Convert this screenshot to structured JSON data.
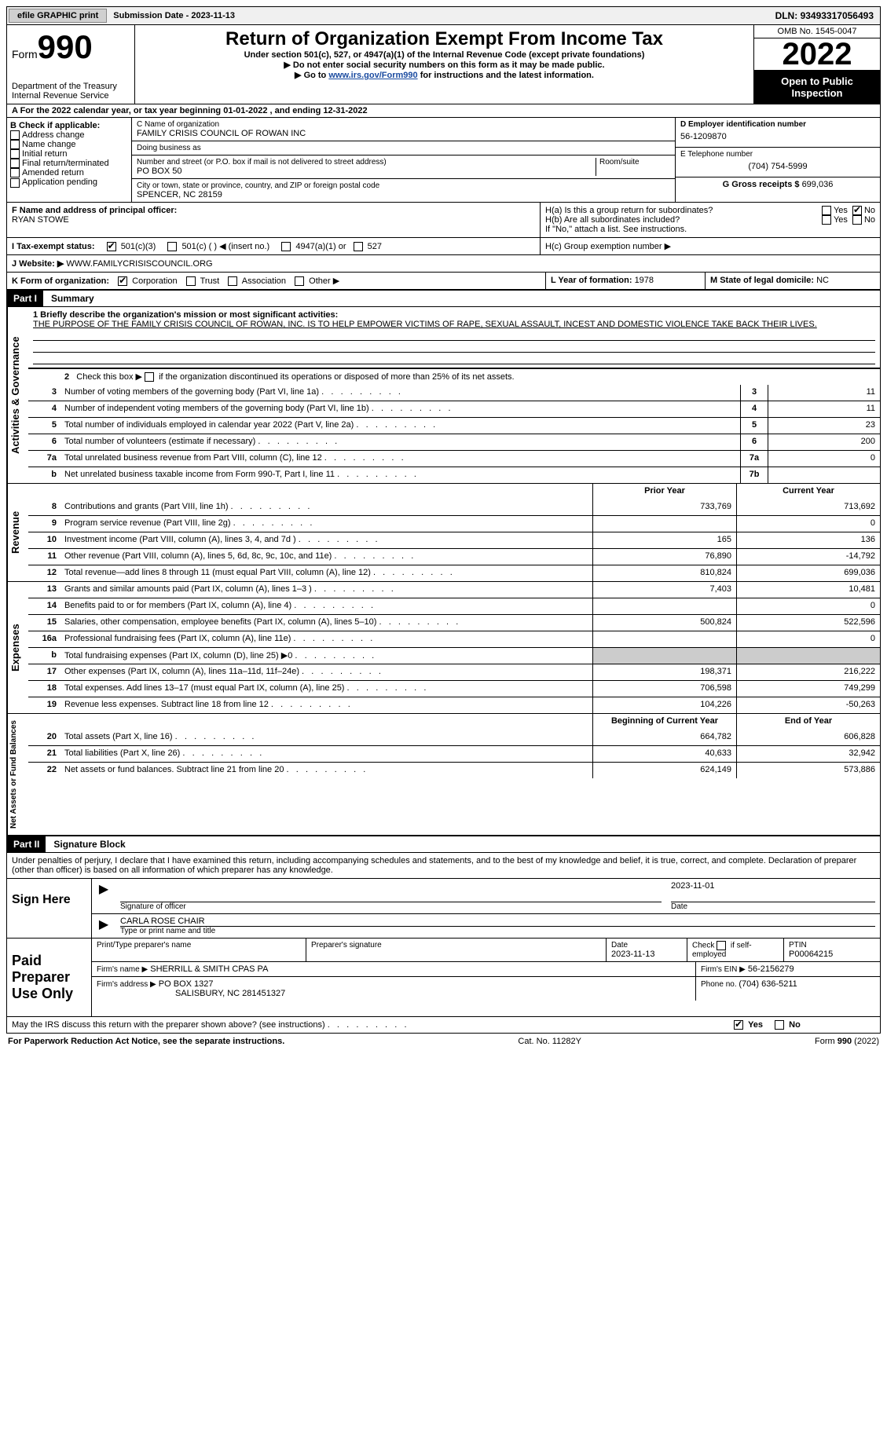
{
  "topbar": {
    "efile": "efile GRAPHIC print",
    "sub_label": "Submission Date - ",
    "sub_date": "2023-11-13",
    "dln_label": "DLN: ",
    "dln": "93493317056493"
  },
  "header": {
    "form_word": "Form",
    "form_num": "990",
    "dept": "Department of the Treasury",
    "irs": "Internal Revenue Service",
    "title": "Return of Organization Exempt From Income Tax",
    "sub1": "Under section 501(c), 527, or 4947(a)(1) of the Internal Revenue Code (except private foundations)",
    "sub2": "▶ Do not enter social security numbers on this form as it may be made public.",
    "sub3a": "▶ Go to ",
    "sub3_link": "www.irs.gov/Form990",
    "sub3b": " for instructions and the latest information.",
    "omb": "OMB No. 1545-0047",
    "year": "2022",
    "open": "Open to Public Inspection"
  },
  "rowA": {
    "text_a": "A For the 2022 calendar year, or tax year beginning ",
    "begin": "01-01-2022",
    "text_b": "   , and ending ",
    "end": "12-31-2022"
  },
  "colB": {
    "label": "B Check if applicable:",
    "opts": [
      "Address change",
      "Name change",
      "Initial return",
      "Final return/terminated",
      "Amended return",
      "Application pending"
    ]
  },
  "colC": {
    "name_label": "C Name of organization",
    "name": "FAMILY CRISIS COUNCIL OF ROWAN INC",
    "dba_label": "Doing business as",
    "dba": "",
    "addr_label": "Number and street (or P.O. box if mail is not delivered to street address)",
    "room_label": "Room/suite",
    "addr": "PO BOX 50",
    "city_label": "City or town, state or province, country, and ZIP or foreign postal code",
    "city": "SPENCER, NC  28159"
  },
  "colDE": {
    "d_label": "D Employer identification number",
    "ein": "56-1209870",
    "e_label": "E Telephone number",
    "phone": "(704) 754-5999",
    "g_label": "G Gross receipts $ ",
    "gross": "699,036"
  },
  "rowF": {
    "f_label": "F Name and address of principal officer:",
    "officer": "RYAN STOWE",
    "ha_label": "H(a)  Is this a group return for subordinates?",
    "hb_label": "H(b)  Are all subordinates included?",
    "h_note": "If \"No,\" attach a list. See instructions.",
    "hc_label": "H(c)  Group exemption number ▶",
    "yes": "Yes",
    "no": "No"
  },
  "rowI": {
    "label": "I    Tax-exempt status:",
    "o1": "501(c)(3)",
    "o2": "501(c) (  ) ◀ (insert no.)",
    "o3": "4947(a)(1) or",
    "o4": "527"
  },
  "rowJ": {
    "label": "J   Website: ▶",
    "url": "WWW.FAMILYCRISISCOUNCIL.ORG"
  },
  "rowK": {
    "label": "K Form of organization:",
    "o1": "Corporation",
    "o2": "Trust",
    "o3": "Association",
    "o4": "Other ▶",
    "l_label": "L Year of formation: ",
    "l_val": "1978",
    "m_label": "M State of legal domicile: ",
    "m_val": "NC"
  },
  "part1": {
    "tag": "Part I",
    "title": "Summary"
  },
  "summary": {
    "q1_label": "1   Briefly describe the organization's mission or most significant activities:",
    "q1_text": "THE PURPOSE OF THE FAMILY CRISIS COUNCIL OF ROWAN, INC. IS TO HELP EMPOWER VICTIMS OF RAPE, SEXUAL ASSAULT, INCEST AND DOMESTIC VIOLENCE TAKE BACK THEIR LIVES.",
    "q2": "2   Check this box ▶        if the organization discontinued its operations or disposed of more than 25% of its net assets.",
    "rows_a": [
      {
        "n": "3",
        "label": "Number of voting members of the governing body (Part VI, line 1a)",
        "box": "3",
        "val": "11"
      },
      {
        "n": "4",
        "label": "Number of independent voting members of the governing body (Part VI, line 1b)",
        "box": "4",
        "val": "11"
      },
      {
        "n": "5",
        "label": "Total number of individuals employed in calendar year 2022 (Part V, line 2a)",
        "box": "5",
        "val": "23"
      },
      {
        "n": "6",
        "label": "Total number of volunteers (estimate if necessary)",
        "box": "6",
        "val": "200"
      },
      {
        "n": "7a",
        "label": "Total unrelated business revenue from Part VIII, column (C), line 12",
        "box": "7a",
        "val": "0"
      },
      {
        "n": "b",
        "label": "Net unrelated business taxable income from Form 990-T, Part I, line 11",
        "box": "7b",
        "val": ""
      }
    ],
    "hdr_prior": "Prior Year",
    "hdr_current": "Current Year",
    "rows_rev": [
      {
        "n": "8",
        "label": "Contributions and grants (Part VIII, line 1h)",
        "p": "733,769",
        "c": "713,692"
      },
      {
        "n": "9",
        "label": "Program service revenue (Part VIII, line 2g)",
        "p": "",
        "c": "0"
      },
      {
        "n": "10",
        "label": "Investment income (Part VIII, column (A), lines 3, 4, and 7d )",
        "p": "165",
        "c": "136"
      },
      {
        "n": "11",
        "label": "Other revenue (Part VIII, column (A), lines 5, 6d, 8c, 9c, 10c, and 11e)",
        "p": "76,890",
        "c": "-14,792"
      },
      {
        "n": "12",
        "label": "Total revenue—add lines 8 through 11 (must equal Part VIII, column (A), line 12)",
        "p": "810,824",
        "c": "699,036"
      }
    ],
    "rows_exp": [
      {
        "n": "13",
        "label": "Grants and similar amounts paid (Part IX, column (A), lines 1–3 )",
        "p": "7,403",
        "c": "10,481"
      },
      {
        "n": "14",
        "label": "Benefits paid to or for members (Part IX, column (A), line 4)",
        "p": "",
        "c": "0"
      },
      {
        "n": "15",
        "label": "Salaries, other compensation, employee benefits (Part IX, column (A), lines 5–10)",
        "p": "500,824",
        "c": "522,596"
      },
      {
        "n": "16a",
        "label": "Professional fundraising fees (Part IX, column (A), line 11e)",
        "p": "",
        "c": "0"
      },
      {
        "n": "b",
        "label": "Total fundraising expenses (Part IX, column (D), line 25) ▶0",
        "p": "GREY",
        "c": "GREY"
      },
      {
        "n": "17",
        "label": "Other expenses (Part IX, column (A), lines 11a–11d, 11f–24e)",
        "p": "198,371",
        "c": "216,222"
      },
      {
        "n": "18",
        "label": "Total expenses. Add lines 13–17 (must equal Part IX, column (A), line 25)",
        "p": "706,598",
        "c": "749,299"
      },
      {
        "n": "19",
        "label": "Revenue less expenses. Subtract line 18 from line 12",
        "p": "104,226",
        "c": "-50,263"
      }
    ],
    "hdr_begin": "Beginning of Current Year",
    "hdr_end": "End of Year",
    "rows_net": [
      {
        "n": "20",
        "label": "Total assets (Part X, line 16)",
        "p": "664,782",
        "c": "606,828"
      },
      {
        "n": "21",
        "label": "Total liabilities (Part X, line 26)",
        "p": "40,633",
        "c": "32,942"
      },
      {
        "n": "22",
        "label": "Net assets or fund balances. Subtract line 21 from line 20",
        "p": "624,149",
        "c": "573,886"
      }
    ]
  },
  "vlabels": {
    "act": "Activities & Governance",
    "rev": "Revenue",
    "exp": "Expenses",
    "net": "Net Assets or Fund Balances"
  },
  "part2": {
    "tag": "Part II",
    "title": "Signature Block",
    "penalties": "Under penalties of perjury, I declare that I have examined this return, including accompanying schedules and statements, and to the best of my knowledge and belief, it is true, correct, and complete. Declaration of preparer (other than officer) is based on all information of which preparer has any knowledge."
  },
  "sign": {
    "here": "Sign Here",
    "sig_officer": "Signature of officer",
    "date_val": "2023-11-01",
    "date": "Date",
    "name": "CARLA ROSE  CHAIR",
    "name_label": "Type or print name and title"
  },
  "paid": {
    "title": "Paid Preparer Use Only",
    "print_label": "Print/Type preparer's name",
    "print_val": "",
    "sig_label": "Preparer's signature",
    "date_label": "Date",
    "date_val": "2023-11-13",
    "check_label": "Check          if self-employed",
    "ptin_label": "PTIN",
    "ptin": "P00064215",
    "firm_name_label": "Firm's name      ▶",
    "firm_name": "SHERRILL & SMITH CPAS PA",
    "firm_ein_label": "Firm's EIN ▶",
    "firm_ein": "56-2156279",
    "firm_addr_label": "Firm's address ▶",
    "firm_addr1": "PO BOX 1327",
    "firm_addr2": "SALISBURY, NC  281451327",
    "phone_label": "Phone no. ",
    "phone": "(704) 636-5211"
  },
  "footer": {
    "discuss": "May the IRS discuss this return with the preparer shown above? (see instructions)",
    "yes": "Yes",
    "no": "No",
    "paperwork": "For Paperwork Reduction Act Notice, see the separate instructions.",
    "cat": "Cat. No. 11282Y",
    "form": "Form 990 (2022)"
  }
}
